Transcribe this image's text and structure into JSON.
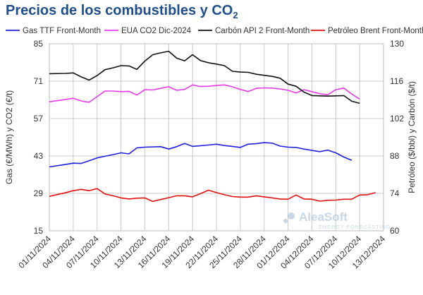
{
  "chart_data": {
    "type": "line",
    "title": "Precios de los combustibles y CO",
    "title_sub": "2",
    "ylabel_left": "Gas (€/MWh) y CO2 (€/t)",
    "ylabel_right": "Petróleo ($/bbl) y Carbón ($/t)",
    "ylim_left": [
      15,
      85
    ],
    "ylim_right": [
      60,
      130
    ],
    "yticks_left": [
      "15",
      "29",
      "43",
      "57",
      "71",
      "85"
    ],
    "yticks_right": [
      "60",
      "74",
      "88",
      "102",
      "116",
      "130"
    ],
    "x_labels": [
      "01/11/2024",
      "04/11/2024",
      "07/11/2024",
      "10/11/2024",
      "13/11/2024",
      "16/11/2024",
      "19/11/2024",
      "22/11/2024",
      "25/11/2024",
      "28/11/2024",
      "01/12/2024",
      "04/12/2024",
      "07/12/2024",
      "10/12/2024",
      "13/12/2024"
    ],
    "x_start": "01/11/2024",
    "x_end": "13/12/2024",
    "grid": true,
    "legend_position": "top",
    "series": [
      {
        "name": "Gas TTF Front-Month",
        "axis": "left",
        "color": "#1f1fdc",
        "points": [
          [
            0,
            38.9
          ],
          [
            2,
            39.8
          ],
          [
            3,
            40.3
          ],
          [
            4,
            40.2
          ],
          [
            5,
            41.2
          ],
          [
            6,
            42.3
          ],
          [
            7,
            42.9
          ],
          [
            8,
            43.5
          ],
          [
            9,
            44.2
          ],
          [
            10,
            43.8
          ],
          [
            11,
            46.0
          ],
          [
            12,
            46.3
          ],
          [
            14,
            46.5
          ],
          [
            15,
            45.6
          ],
          [
            16,
            46.5
          ],
          [
            17,
            47.7
          ],
          [
            18,
            46.6
          ],
          [
            20,
            47.1
          ],
          [
            21,
            47.4
          ],
          [
            22,
            46.9
          ],
          [
            23,
            46.6
          ],
          [
            24,
            46.2
          ],
          [
            25,
            47.4
          ],
          [
            26,
            47.6
          ],
          [
            27,
            48.0
          ],
          [
            28,
            47.8
          ],
          [
            29,
            46.7
          ],
          [
            30,
            46.3
          ],
          [
            31,
            46.2
          ],
          [
            32,
            45.6
          ],
          [
            33,
            45.1
          ],
          [
            34,
            44.6
          ],
          [
            35,
            45.2
          ],
          [
            36,
            44.2
          ],
          [
            37,
            42.6
          ],
          [
            38,
            41.4
          ]
        ]
      },
      {
        "name": "EUA CO2 Dic-2024",
        "axis": "left",
        "color": "#e43ce4",
        "points": [
          [
            0,
            63.3
          ],
          [
            2,
            64.1
          ],
          [
            3,
            64.6
          ],
          [
            4,
            63.6
          ],
          [
            5,
            63.1
          ],
          [
            6,
            65.2
          ],
          [
            7,
            67.3
          ],
          [
            8,
            67.3
          ],
          [
            9,
            67.1
          ],
          [
            10,
            67.2
          ],
          [
            11,
            65.8
          ],
          [
            12,
            67.8
          ],
          [
            13,
            67.7
          ],
          [
            14,
            68.3
          ],
          [
            15,
            68.9
          ],
          [
            16,
            67.6
          ],
          [
            17,
            67.9
          ],
          [
            18,
            69.6
          ],
          [
            19,
            69.0
          ],
          [
            20,
            69.1
          ],
          [
            21,
            69.4
          ],
          [
            22,
            69.6
          ],
          [
            23,
            68.9
          ],
          [
            24,
            67.9
          ],
          [
            25,
            67.1
          ],
          [
            26,
            68.3
          ],
          [
            27,
            68.5
          ],
          [
            28,
            68.4
          ],
          [
            29,
            68.1
          ],
          [
            30,
            67.6
          ],
          [
            31,
            66.6
          ],
          [
            32,
            67.8
          ],
          [
            33,
            67.1
          ],
          [
            34,
            66.3
          ],
          [
            35,
            65.9
          ],
          [
            36,
            67.8
          ],
          [
            37,
            68.4
          ],
          [
            38,
            66.2
          ],
          [
            39,
            64.3
          ]
        ]
      },
      {
        "name": "Carbón API 2 Front-Month",
        "axis": "right",
        "color": "#111111",
        "points": [
          [
            0,
            118.8
          ],
          [
            2,
            118.9
          ],
          [
            3,
            119.1
          ],
          [
            4,
            117.6
          ],
          [
            5,
            116.4
          ],
          [
            6,
            118.1
          ],
          [
            7,
            120.3
          ],
          [
            8,
            121.0
          ],
          [
            9,
            121.8
          ],
          [
            10,
            121.7
          ],
          [
            11,
            120.4
          ],
          [
            12,
            123.5
          ],
          [
            13,
            125.9
          ],
          [
            14,
            126.6
          ],
          [
            15,
            127.2
          ],
          [
            16,
            124.6
          ],
          [
            17,
            123.6
          ],
          [
            18,
            125.9
          ],
          [
            19,
            123.7
          ],
          [
            20,
            122.9
          ],
          [
            21,
            122.4
          ],
          [
            22,
            121.8
          ],
          [
            23,
            119.7
          ],
          [
            24,
            119.4
          ],
          [
            25,
            119.3
          ],
          [
            26,
            118.6
          ],
          [
            27,
            118.2
          ],
          [
            28,
            117.8
          ],
          [
            29,
            117.1
          ],
          [
            30,
            114.9
          ],
          [
            31,
            114.1
          ],
          [
            32,
            111.9
          ],
          [
            33,
            110.6
          ],
          [
            34,
            110.5
          ],
          [
            35,
            110.4
          ],
          [
            36,
            110.5
          ],
          [
            37,
            110.6
          ],
          [
            38,
            108.5
          ],
          [
            39,
            107.7
          ]
        ]
      },
      {
        "name": "Petróleo Brent Front-Month",
        "axis": "right",
        "color": "#e01010",
        "points": [
          [
            0,
            72.9
          ],
          [
            2,
            74.2
          ],
          [
            3,
            75.0
          ],
          [
            4,
            75.5
          ],
          [
            5,
            75.0
          ],
          [
            6,
            75.8
          ],
          [
            7,
            73.8
          ],
          [
            8,
            73.1
          ],
          [
            9,
            72.3
          ],
          [
            10,
            71.9
          ],
          [
            11,
            72.2
          ],
          [
            12,
            72.3
          ],
          [
            13,
            71.0
          ],
          [
            14,
            71.7
          ],
          [
            15,
            72.4
          ],
          [
            16,
            73.1
          ],
          [
            17,
            73.1
          ],
          [
            18,
            72.7
          ],
          [
            19,
            73.9
          ],
          [
            20,
            75.2
          ],
          [
            21,
            74.3
          ],
          [
            22,
            73.5
          ],
          [
            23,
            72.8
          ],
          [
            24,
            72.6
          ],
          [
            25,
            72.6
          ],
          [
            26,
            73.1
          ],
          [
            27,
            72.7
          ],
          [
            28,
            72.3
          ],
          [
            29,
            71.9
          ],
          [
            30,
            71.8
          ],
          [
            31,
            73.4
          ],
          [
            32,
            71.9
          ],
          [
            33,
            71.8
          ],
          [
            34,
            71.1
          ],
          [
            35,
            71.4
          ],
          [
            36,
            71.5
          ],
          [
            37,
            71.8
          ],
          [
            38,
            71.8
          ],
          [
            39,
            73.4
          ],
          [
            40,
            73.5
          ],
          [
            41,
            74.3
          ]
        ]
      }
    ]
  },
  "watermark": {
    "brand": "AleaSoft",
    "tagline": "ENERGY FORECASTING"
  }
}
